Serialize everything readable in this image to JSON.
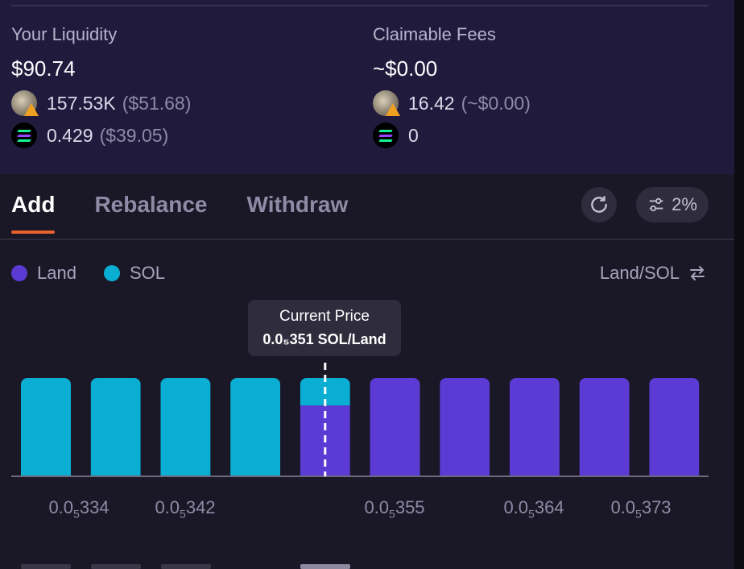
{
  "liquidity": {
    "label": "Your Liquidity",
    "value": "$90.74",
    "land_amount": "157.53K",
    "land_usd": "($51.68)",
    "sol_amount": "0.429",
    "sol_usd": "($39.05)"
  },
  "fees": {
    "label": "Claimable Fees",
    "value": "~$0.00",
    "land_amount": "16.42",
    "land_usd": "(~$0.00)",
    "sol_amount": "0"
  },
  "tabs": [
    {
      "label": "Add",
      "active": true
    },
    {
      "label": "Rebalance",
      "active": false
    },
    {
      "label": "Withdraw",
      "active": false
    }
  ],
  "slippage": "2%",
  "legend": {
    "land_label": "Land",
    "sol_label": "SOL",
    "land_color": "#5b3bd4",
    "sol_color": "#0aaed3"
  },
  "pair_label": "Land/SOL",
  "current_price": {
    "title": "Current Price",
    "value": "0.0₅351 SOL/Land"
  },
  "ticks": [
    {
      "prefix": "0.0",
      "sub": "5",
      "suffix": "334"
    },
    {
      "prefix": "0.0",
      "sub": "5",
      "suffix": "342"
    },
    {
      "prefix": "0.0",
      "sub": "5",
      "suffix": "355"
    },
    {
      "prefix": "0.0",
      "sub": "5",
      "suffix": "364"
    },
    {
      "prefix": "0.0",
      "sub": "5",
      "suffix": "373"
    }
  ],
  "chart_data": {
    "type": "bar",
    "bins": 10,
    "sol_fraction": [
      1,
      1,
      1,
      1,
      0.28,
      0,
      0,
      0,
      0,
      0
    ],
    "land_fraction": [
      0,
      0,
      0,
      0,
      0.72,
      1,
      1,
      1,
      1,
      1
    ],
    "current_price_bin": 4
  }
}
